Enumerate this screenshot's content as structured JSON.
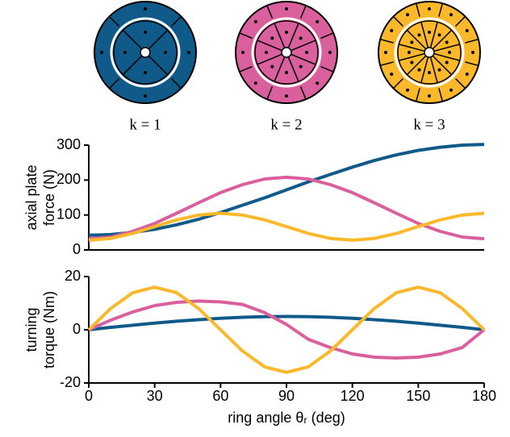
{
  "chart_data": [
    {
      "type": "line",
      "ylabel": [
        "axial plate",
        "force (N)"
      ],
      "x": [
        0,
        10,
        20,
        30,
        40,
        50,
        60,
        70,
        80,
        90,
        100,
        110,
        120,
        130,
        140,
        150,
        160,
        170,
        180
      ],
      "xlim": [
        0,
        180
      ],
      "ylim": [
        0,
        300
      ],
      "yticks": [
        0,
        100,
        200,
        300
      ],
      "series": [
        {
          "name": "k = 1",
          "color": "#105a8a",
          "values": [
            42,
            44,
            50,
            59,
            72,
            88,
            107,
            128,
            149,
            172,
            195,
            216,
            237,
            256,
            272,
            285,
            294,
            300,
            302
          ]
        },
        {
          "name": "k = 2",
          "color": "#d9609c",
          "values": [
            32,
            37,
            53,
            76,
            105,
            135,
            164,
            187,
            203,
            208,
            203,
            187,
            164,
            135,
            105,
            76,
            53,
            37,
            32
          ]
        },
        {
          "name": "k = 3",
          "color": "#fbb82b",
          "values": [
            28,
            33,
            47,
            67,
            86,
            100,
            105,
            100,
            86,
            67,
            47,
            33,
            28,
            33,
            47,
            67,
            86,
            100,
            105
          ]
        }
      ]
    },
    {
      "type": "line",
      "ylabel": [
        "turning",
        "torque (Nm)"
      ],
      "xlabel": "ring angle θᵣ (deg)",
      "x": [
        0,
        10,
        20,
        30,
        40,
        50,
        60,
        70,
        80,
        90,
        100,
        110,
        120,
        130,
        140,
        150,
        160,
        170,
        180
      ],
      "xlim": [
        0,
        180
      ],
      "xticks": [
        0,
        30,
        60,
        90,
        120,
        150,
        180
      ],
      "ylim": [
        -20,
        20
      ],
      "yticks": [
        -20,
        0,
        20
      ],
      "series": [
        {
          "color": "#105a8a",
          "values": [
            0,
            0.9,
            1.7,
            2.5,
            3.2,
            3.8,
            4.3,
            4.7,
            4.9,
            5,
            4.9,
            4.7,
            4.3,
            3.8,
            3.2,
            2.5,
            1.7,
            0.9,
            0
          ]
        },
        {
          "color": "#d9609c",
          "values": [
            0,
            3.6,
            6.7,
            9.1,
            10.3,
            10.8,
            10.5,
            9.5,
            6.5,
            2,
            -3.6,
            -6.7,
            -9.1,
            -10.3,
            -10.6,
            -10.3,
            -9.1,
            -6.7,
            0
          ]
        },
        {
          "color": "#fbb82b",
          "values": [
            0,
            8,
            13.9,
            16,
            13.9,
            8,
            0,
            -8,
            -13.9,
            -16,
            -13.9,
            -8,
            0,
            8,
            13.9,
            16,
            13.9,
            8,
            0
          ]
        }
      ]
    }
  ]
}
